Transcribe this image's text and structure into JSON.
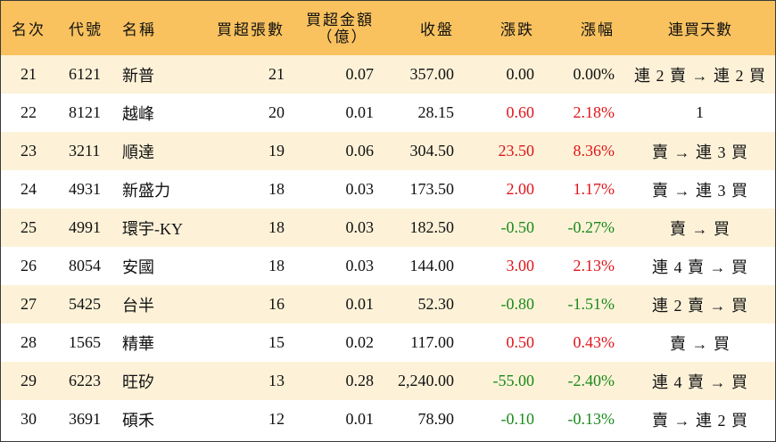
{
  "headers": {
    "rank": "名次",
    "code": "代號",
    "name": "名稱",
    "net_lots": "買超張數",
    "net_amount_line1": "買超金額",
    "net_amount_line2": "（億）",
    "close": "收盤",
    "change": "漲跌",
    "change_pct": "漲幅",
    "streak": "連買天數"
  },
  "colors": {
    "header_bg": "#f9c25f",
    "stripe_bg": "#fdf2d8",
    "up": "#e0151b",
    "down": "#1a8a1a"
  },
  "rows": [
    {
      "rank": "21",
      "code": "6121",
      "name": "新普",
      "net_lots": "21",
      "net_amount": "0.07",
      "close": "357.00",
      "change": "0.00",
      "change_pct": "0.00%",
      "streak": "連 2 賣 → 連 2 買",
      "trend": "flat"
    },
    {
      "rank": "22",
      "code": "8121",
      "name": "越峰",
      "net_lots": "20",
      "net_amount": "0.01",
      "close": "28.15",
      "change": "0.60",
      "change_pct": "2.18%",
      "streak": "1",
      "trend": "up"
    },
    {
      "rank": "23",
      "code": "3211",
      "name": "順達",
      "net_lots": "19",
      "net_amount": "0.06",
      "close": "304.50",
      "change": "23.50",
      "change_pct": "8.36%",
      "streak": "賣 → 連 3 買",
      "trend": "up"
    },
    {
      "rank": "24",
      "code": "4931",
      "name": "新盛力",
      "net_lots": "18",
      "net_amount": "0.03",
      "close": "173.50",
      "change": "2.00",
      "change_pct": "1.17%",
      "streak": "賣 → 連 3 買",
      "trend": "up"
    },
    {
      "rank": "25",
      "code": "4991",
      "name": "環宇-KY",
      "net_lots": "18",
      "net_amount": "0.03",
      "close": "182.50",
      "change": "-0.50",
      "change_pct": "-0.27%",
      "streak": "賣 → 買",
      "trend": "down"
    },
    {
      "rank": "26",
      "code": "8054",
      "name": "安國",
      "net_lots": "18",
      "net_amount": "0.03",
      "close": "144.00",
      "change": "3.00",
      "change_pct": "2.13%",
      "streak": "連 4 賣 → 買",
      "trend": "up"
    },
    {
      "rank": "27",
      "code": "5425",
      "name": "台半",
      "net_lots": "16",
      "net_amount": "0.01",
      "close": "52.30",
      "change": "-0.80",
      "change_pct": "-1.51%",
      "streak": "連 2 賣 → 買",
      "trend": "down"
    },
    {
      "rank": "28",
      "code": "1565",
      "name": "精華",
      "net_lots": "15",
      "net_amount": "0.02",
      "close": "117.00",
      "change": "0.50",
      "change_pct": "0.43%",
      "streak": "賣 → 買",
      "trend": "up"
    },
    {
      "rank": "29",
      "code": "6223",
      "name": "旺矽",
      "net_lots": "13",
      "net_amount": "0.28",
      "close": "2,240.00",
      "change": "-55.00",
      "change_pct": "-2.40%",
      "streak": "連 4 賣 → 買",
      "trend": "down"
    },
    {
      "rank": "30",
      "code": "3691",
      "name": "碩禾",
      "net_lots": "12",
      "net_amount": "0.01",
      "close": "78.90",
      "change": "-0.10",
      "change_pct": "-0.13%",
      "streak": "賣 → 連 2 買",
      "trend": "down"
    }
  ]
}
